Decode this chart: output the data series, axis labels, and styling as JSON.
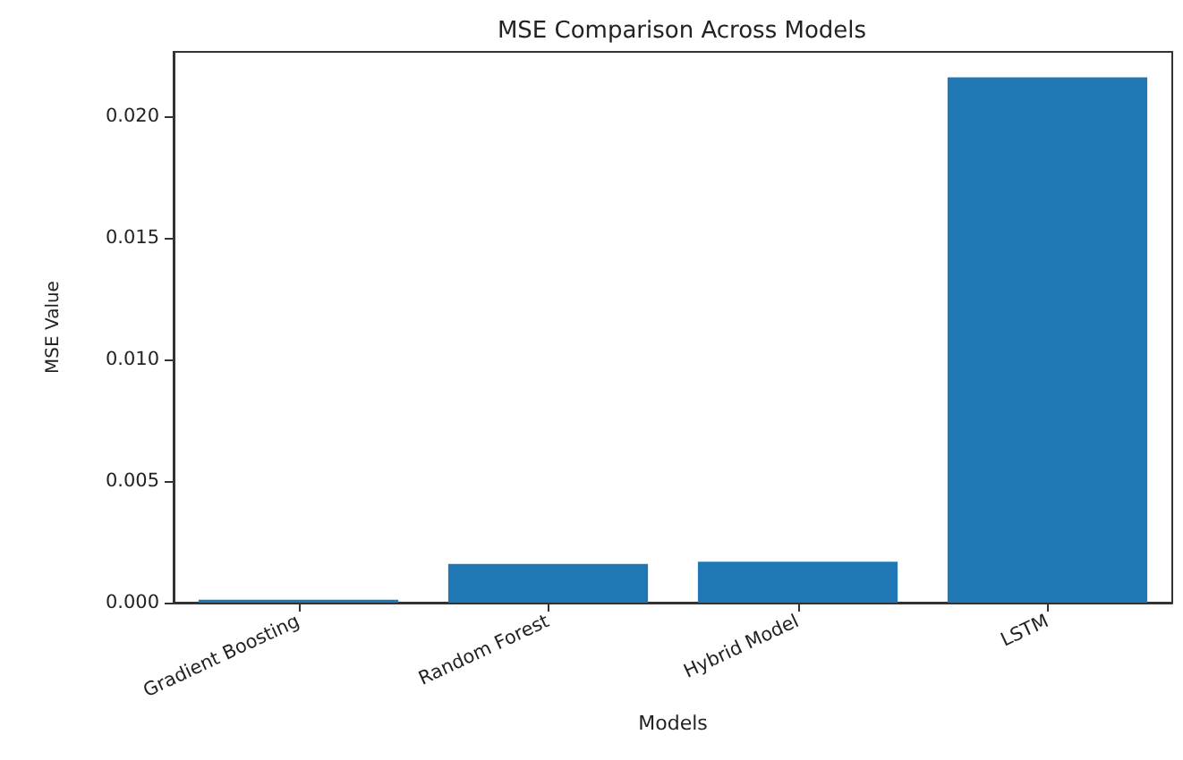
{
  "chart_data": {
    "type": "bar",
    "title": "MSE Comparison Across Models",
    "xlabel": "Models",
    "ylabel": "MSE Value",
    "categories": [
      "Gradient Boosting",
      "Random Forest",
      "Hybrid Model",
      "LSTM"
    ],
    "values": [
      0.00012,
      0.00159,
      0.00168,
      0.0216
    ],
    "color": "#1f77b4",
    "ylim": [
      0,
      0.02265
    ],
    "yticks": [
      {
        "value": 0,
        "label": "0.000"
      },
      {
        "value": 0.005,
        "label": "0.005"
      },
      {
        "value": 0.01,
        "label": "0.010"
      },
      {
        "value": 0.015,
        "label": "0.015"
      },
      {
        "value": 0.02,
        "label": "0.020"
      }
    ],
    "grid": false
  }
}
